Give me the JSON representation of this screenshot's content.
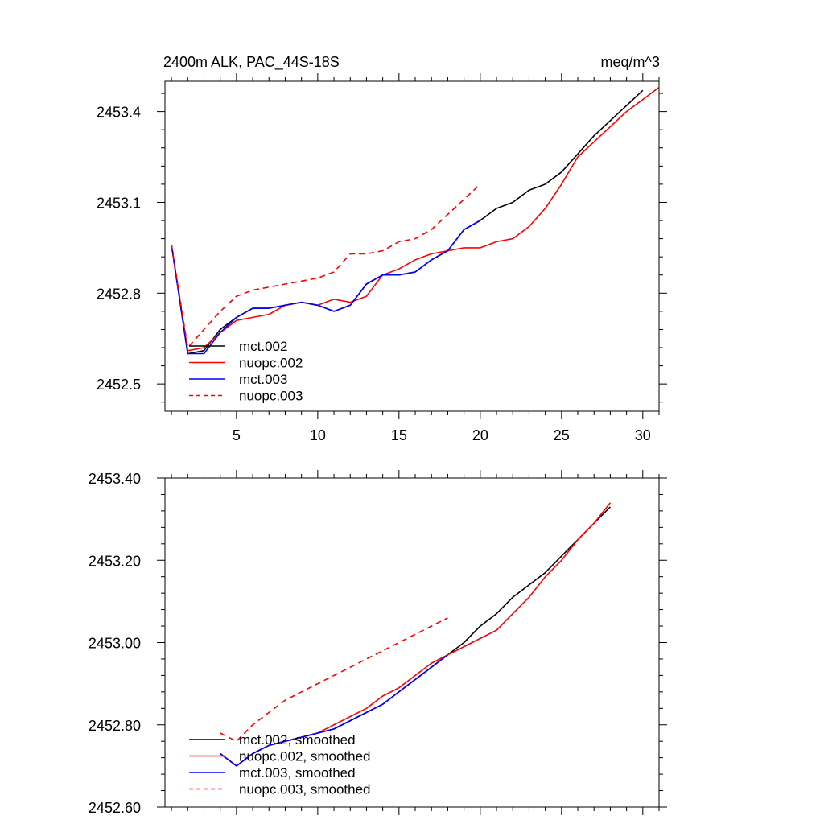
{
  "title_left": "2400m ALK, PAC_44S-18S",
  "title_right": "meq/m^3",
  "chart_data": [
    {
      "type": "line",
      "xlim": [
        0.6,
        31.0
      ],
      "ylim": [
        2452.41,
        2453.5
      ],
      "x_ticks": [
        5,
        10,
        15,
        20,
        25,
        30
      ],
      "x_tick_labels": [
        "5",
        "10",
        "15",
        "20",
        "25",
        "30"
      ],
      "y_ticks": [
        2452.5,
        2452.8,
        2453.1,
        2453.4
      ],
      "y_tick_labels": [
        "2452.5",
        "2452.8",
        "2453.1",
        "2453.4"
      ],
      "show_x_labels": true,
      "legend_position": "bottom-left",
      "series": [
        {
          "name": "mct.002",
          "color": "#000000",
          "dash": "",
          "x": [
            1,
            2,
            3,
            4,
            5,
            6,
            7,
            8,
            9,
            10,
            11,
            12,
            13,
            14,
            15,
            16,
            17,
            18,
            19,
            20,
            21,
            22,
            23,
            24,
            25,
            26,
            27,
            28,
            29,
            30
          ],
          "y": [
            2452.96,
            2452.6,
            2452.61,
            2452.68,
            2452.72,
            2452.75,
            2452.75,
            2452.76,
            2452.77,
            2452.76,
            2452.74,
            2452.76,
            2452.83,
            2452.86,
            2452.86,
            2452.87,
            2452.91,
            2452.94,
            2453.01,
            2453.04,
            2453.08,
            2453.1,
            2453.14,
            2453.16,
            2453.2,
            2453.26,
            2453.32,
            2453.37,
            2453.42,
            2453.47
          ]
        },
        {
          "name": "nuopc.002",
          "color": "#ff0000",
          "dash": "",
          "x": [
            1,
            2,
            3,
            4,
            5,
            6,
            7,
            8,
            9,
            10,
            11,
            12,
            13,
            14,
            15,
            16,
            17,
            18,
            19,
            20,
            21,
            22,
            23,
            24,
            25,
            26,
            27,
            28,
            29,
            30,
            31
          ],
          "y": [
            2452.96,
            2452.61,
            2452.62,
            2452.67,
            2452.71,
            2452.72,
            2452.73,
            2452.76,
            2452.77,
            2452.76,
            2452.78,
            2452.77,
            2452.79,
            2452.86,
            2452.88,
            2452.91,
            2452.93,
            2452.94,
            2452.95,
            2452.95,
            2452.97,
            2452.98,
            2453.02,
            2453.08,
            2453.16,
            2453.25,
            2453.3,
            2453.35,
            2453.4,
            2453.44,
            2453.48
          ]
        },
        {
          "name": "mct.003",
          "color": "#0000ff",
          "dash": "",
          "x": [
            1,
            2,
            3,
            4,
            5,
            6,
            7,
            8,
            9,
            10,
            11,
            12,
            13,
            14,
            15,
            16,
            17,
            18,
            19,
            20
          ],
          "y": [
            2452.96,
            2452.6,
            2452.6,
            2452.67,
            2452.72,
            2452.75,
            2452.75,
            2452.76,
            2452.77,
            2452.76,
            2452.74,
            2452.76,
            2452.83,
            2452.86,
            2452.86,
            2452.87,
            2452.91,
            2452.94,
            2453.01,
            2453.04
          ]
        },
        {
          "name": "nuopc.003",
          "color": "#ff0000",
          "dash": "7,5",
          "x": [
            1,
            2,
            3,
            4,
            5,
            6,
            7,
            8,
            9,
            10,
            11,
            12,
            13,
            14,
            15,
            16,
            17,
            18,
            19,
            20
          ],
          "y": [
            2452.96,
            2452.62,
            2452.68,
            2452.74,
            2452.79,
            2452.81,
            2452.82,
            2452.83,
            2452.84,
            2452.85,
            2452.87,
            2452.93,
            2452.93,
            2452.94,
            2452.97,
            2452.98,
            2453.01,
            2453.06,
            2453.11,
            2453.16
          ]
        }
      ]
    },
    {
      "type": "line",
      "xlim": [
        0.6,
        31.0
      ],
      "ylim": [
        2452.6,
        2453.4
      ],
      "x_ticks": [
        5,
        10,
        15,
        20,
        25,
        30
      ],
      "x_tick_labels": [],
      "y_ticks": [
        2452.6,
        2452.8,
        2453.0,
        2453.2,
        2453.4
      ],
      "y_tick_labels": [
        "2452.60",
        "2452.80",
        "2453.00",
        "2453.20",
        "2453.40"
      ],
      "show_x_labels": false,
      "legend_position": "bottom-left",
      "series": [
        {
          "name": "mct.002, smoothed",
          "color": "#000000",
          "dash": "",
          "x": [
            4,
            5,
            6,
            7,
            8,
            9,
            10,
            11,
            12,
            13,
            14,
            15,
            16,
            17,
            18,
            19,
            20,
            21,
            22,
            23,
            24,
            25,
            26,
            27,
            28
          ],
          "y": [
            2452.73,
            2452.7,
            2452.73,
            2452.75,
            2452.76,
            2452.77,
            2452.78,
            2452.79,
            2452.81,
            2452.83,
            2452.85,
            2452.88,
            2452.91,
            2452.94,
            2452.97,
            2453.0,
            2453.04,
            2453.07,
            2453.11,
            2453.14,
            2453.17,
            2453.21,
            2453.25,
            2453.29,
            2453.33
          ]
        },
        {
          "name": "nuopc.002, smoothed",
          "color": "#ff0000",
          "dash": "",
          "x": [
            4,
            5,
            6,
            7,
            8,
            9,
            10,
            11,
            12,
            13,
            14,
            15,
            16,
            17,
            18,
            19,
            20,
            21,
            22,
            23,
            24,
            25,
            26,
            27,
            28
          ],
          "y": [
            2452.73,
            2452.7,
            2452.73,
            2452.75,
            2452.76,
            2452.77,
            2452.78,
            2452.8,
            2452.82,
            2452.84,
            2452.87,
            2452.89,
            2452.92,
            2452.95,
            2452.97,
            2452.99,
            2453.01,
            2453.03,
            2453.07,
            2453.11,
            2453.16,
            2453.2,
            2453.25,
            2453.29,
            2453.34
          ]
        },
        {
          "name": "mct.003, smoothed",
          "color": "#0000ff",
          "dash": "",
          "x": [
            4,
            5,
            6,
            7,
            8,
            9,
            10,
            11,
            12,
            13,
            14,
            15,
            16,
            17,
            18
          ],
          "y": [
            2452.73,
            2452.7,
            2452.73,
            2452.75,
            2452.76,
            2452.77,
            2452.78,
            2452.79,
            2452.81,
            2452.83,
            2452.85,
            2452.88,
            2452.91,
            2452.94,
            2452.97
          ]
        },
        {
          "name": "nuopc.003, smoothed",
          "color": "#ff0000",
          "dash": "7,5",
          "x": [
            4,
            5,
            6,
            7,
            8,
            9,
            10,
            11,
            12,
            13,
            14,
            15,
            16,
            17,
            18
          ],
          "y": [
            2452.78,
            2452.76,
            2452.8,
            2452.83,
            2452.86,
            2452.88,
            2452.9,
            2452.92,
            2452.94,
            2452.96,
            2452.98,
            2453.0,
            2453.02,
            2453.04,
            2453.06
          ]
        }
      ]
    }
  ]
}
